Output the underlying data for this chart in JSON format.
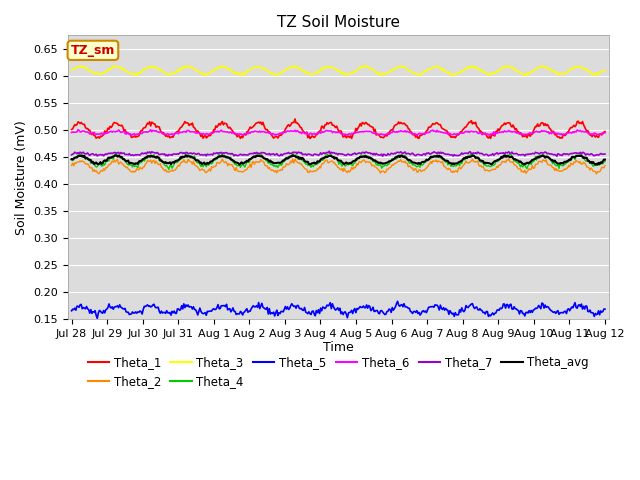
{
  "title": "TZ Soil Moisture",
  "xlabel": "Time",
  "ylabel": "Soil Moisture (mV)",
  "ylim": [
    0.15,
    0.675
  ],
  "yticks": [
    0.15,
    0.2,
    0.25,
    0.3,
    0.35,
    0.4,
    0.45,
    0.5,
    0.55,
    0.6,
    0.65
  ],
  "n_points": 500,
  "series": {
    "Theta_1": {
      "base": 0.5,
      "amp": 0.013,
      "freq": 1.0,
      "noise": 0.002,
      "color": "#ff0000",
      "lw": 1.2,
      "ls": "-"
    },
    "Theta_2": {
      "base": 0.433,
      "amp": 0.01,
      "freq": 1.0,
      "noise": 0.002,
      "color": "#ff8800",
      "lw": 1.0,
      "ls": "-"
    },
    "Theta_3": {
      "base": 0.61,
      "amp": 0.007,
      "freq": 1.0,
      "noise": 0.001,
      "color": "#ffff00",
      "lw": 1.2,
      "ls": "-"
    },
    "Theta_4": {
      "base": 0.443,
      "amp": 0.01,
      "freq": 1.0,
      "noise": 0.002,
      "color": "#00cc00",
      "lw": 1.0,
      "ls": "-"
    },
    "Theta_5": {
      "base": 0.168,
      "amp": 0.007,
      "freq": 1.0,
      "noise": 0.003,
      "color": "#0000ff",
      "lw": 1.2,
      "ls": "-"
    },
    "Theta_6": {
      "base": 0.495,
      "amp": 0.003,
      "freq": 1.0,
      "noise": 0.001,
      "color": "#ff00ff",
      "lw": 1.2,
      "ls": "-"
    },
    "Theta_7": {
      "base": 0.456,
      "amp": 0.002,
      "freq": 1.0,
      "noise": 0.001,
      "color": "#9900cc",
      "lw": 1.2,
      "ls": "-"
    },
    "Theta_avg": {
      "base": 0.445,
      "amp": 0.007,
      "freq": 1.0,
      "noise": 0.001,
      "color": "#000000",
      "lw": 1.5,
      "ls": "-"
    }
  },
  "legend_label_box": "TZ_sm",
  "legend_box_bg": "#ffffcc",
  "legend_box_border": "#cc8800",
  "plot_bg": "#dcdcdc",
  "fig_bg": "#ffffff",
  "grid_color": "#ffffff",
  "title_fontsize": 11,
  "label_fontsize": 9,
  "tick_fontsize": 8,
  "legend_fontsize": 8.5
}
